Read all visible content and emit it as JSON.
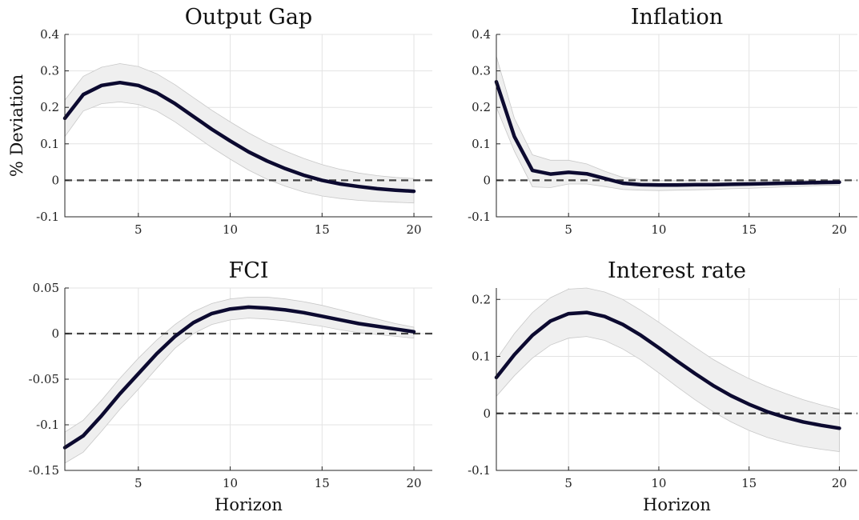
{
  "chart_data": [
    {
      "type": "line",
      "title": "Output Gap",
      "xlabel": "",
      "ylabel": "% Deviation",
      "xlim": [
        1,
        21
      ],
      "ylim": [
        -0.1,
        0.4
      ],
      "xticks": [
        5,
        10,
        15,
        20
      ],
      "yticks": [
        -0.1,
        0,
        0.1,
        0.2,
        0.3,
        0.4
      ],
      "ytick_labels": [
        "-0.1",
        "0",
        "0.1",
        "0.2",
        "0.3",
        "0.4"
      ],
      "grid": true,
      "zero_line": true,
      "x": [
        1,
        2,
        3,
        4,
        5,
        6,
        7,
        8,
        9,
        10,
        11,
        12,
        13,
        14,
        15,
        16,
        17,
        18,
        19,
        20
      ],
      "series": [
        {
          "values": [
            0.17,
            0.235,
            0.26,
            0.268,
            0.26,
            0.24,
            0.21,
            0.175,
            0.14,
            0.108,
            0.078,
            0.053,
            0.032,
            0.014,
            0.0,
            -0.01,
            -0.017,
            -0.023,
            -0.027,
            -0.03
          ]
        }
      ],
      "band_upper": [
        0.22,
        0.285,
        0.31,
        0.32,
        0.312,
        0.292,
        0.262,
        0.227,
        0.192,
        0.16,
        0.13,
        0.103,
        0.08,
        0.06,
        0.043,
        0.03,
        0.02,
        0.013,
        0.008,
        0.005
      ],
      "band_lower": [
        0.12,
        0.19,
        0.21,
        0.215,
        0.208,
        0.19,
        0.16,
        0.125,
        0.09,
        0.058,
        0.028,
        0.003,
        -0.016,
        -0.032,
        -0.043,
        -0.05,
        -0.055,
        -0.058,
        -0.06,
        -0.062
      ]
    },
    {
      "type": "line",
      "title": "Inflation",
      "xlabel": "",
      "ylabel": "",
      "xlim": [
        1,
        21
      ],
      "ylim": [
        -0.1,
        0.4
      ],
      "xticks": [
        5,
        10,
        15,
        20
      ],
      "yticks": [
        -0.1,
        0,
        0.1,
        0.2,
        0.3,
        0.4
      ],
      "ytick_labels": [
        "-0.1",
        "0",
        "0.1",
        "0.2",
        "0.3",
        "0.4"
      ],
      "grid": true,
      "zero_line": true,
      "x": [
        1,
        2,
        3,
        4,
        5,
        6,
        7,
        8,
        9,
        10,
        11,
        12,
        13,
        14,
        15,
        16,
        17,
        18,
        19,
        20
      ],
      "series": [
        {
          "values": [
            0.27,
            0.12,
            0.027,
            0.017,
            0.022,
            0.018,
            0.005,
            -0.008,
            -0.012,
            -0.013,
            -0.013,
            -0.012,
            -0.012,
            -0.011,
            -0.01,
            -0.009,
            -0.008,
            -0.007,
            -0.006,
            -0.005
          ]
        }
      ],
      "band_upper": [
        0.34,
        0.17,
        0.07,
        0.055,
        0.055,
        0.045,
        0.025,
        0.008,
        0.002,
        0.0,
        0.0,
        0.0,
        0.0,
        0.0,
        0.0,
        0.0,
        0.0,
        0.0,
        0.0,
        0.0
      ],
      "band_lower": [
        0.2,
        0.08,
        -0.018,
        -0.02,
        -0.01,
        -0.01,
        -0.017,
        -0.025,
        -0.027,
        -0.028,
        -0.027,
        -0.026,
        -0.025,
        -0.023,
        -0.022,
        -0.02,
        -0.018,
        -0.016,
        -0.014,
        -0.013
      ]
    },
    {
      "type": "line",
      "title": "FCI",
      "xlabel": "Horizon",
      "ylabel": "",
      "xlim": [
        1,
        21
      ],
      "ylim": [
        -0.15,
        0.05
      ],
      "xticks": [
        5,
        10,
        15,
        20
      ],
      "yticks": [
        -0.15,
        -0.1,
        -0.05,
        0,
        0.05
      ],
      "ytick_labels": [
        "-0.15",
        "-0.1",
        "-0.05",
        "0",
        "0.05"
      ],
      "grid": true,
      "zero_line": true,
      "x": [
        1,
        2,
        3,
        4,
        5,
        6,
        7,
        8,
        9,
        10,
        11,
        12,
        13,
        14,
        15,
        16,
        17,
        18,
        19,
        20
      ],
      "series": [
        {
          "values": [
            -0.125,
            -0.112,
            -0.09,
            -0.066,
            -0.044,
            -0.022,
            -0.003,
            0.012,
            0.022,
            0.027,
            0.029,
            0.028,
            0.026,
            0.023,
            0.019,
            0.015,
            0.011,
            0.008,
            0.005,
            0.002
          ]
        }
      ],
      "band_upper": [
        -0.108,
        -0.095,
        -0.073,
        -0.049,
        -0.027,
        -0.007,
        0.01,
        0.024,
        0.033,
        0.038,
        0.04,
        0.04,
        0.038,
        0.035,
        0.031,
        0.026,
        0.021,
        0.016,
        0.011,
        0.007
      ],
      "band_lower": [
        -0.142,
        -0.13,
        -0.107,
        -0.083,
        -0.061,
        -0.038,
        -0.016,
        0.0,
        0.01,
        0.015,
        0.017,
        0.016,
        0.014,
        0.011,
        0.008,
        0.004,
        0.001,
        -0.001,
        -0.003,
        -0.005
      ]
    },
    {
      "type": "line",
      "title": "Interest rate",
      "xlabel": "Horizon",
      "ylabel": "",
      "xlim": [
        1,
        21
      ],
      "ylim": [
        -0.1,
        0.22
      ],
      "xticks": [
        5,
        10,
        15,
        20
      ],
      "yticks": [
        -0.1,
        0,
        0.1,
        0.2
      ],
      "ytick_labels": [
        "-0.1",
        "0",
        "0.1",
        "0.2"
      ],
      "grid": true,
      "zero_line": true,
      "x": [
        1,
        2,
        3,
        4,
        5,
        6,
        7,
        8,
        9,
        10,
        11,
        12,
        13,
        14,
        15,
        16,
        17,
        18,
        19,
        20
      ],
      "series": [
        {
          "values": [
            0.063,
            0.103,
            0.137,
            0.162,
            0.175,
            0.177,
            0.17,
            0.156,
            0.137,
            0.115,
            0.092,
            0.07,
            0.049,
            0.031,
            0.016,
            0.003,
            -0.007,
            -0.015,
            -0.021,
            -0.026
          ]
        }
      ],
      "band_upper": [
        0.095,
        0.14,
        0.177,
        0.203,
        0.218,
        0.22,
        0.213,
        0.2,
        0.181,
        0.16,
        0.138,
        0.116,
        0.095,
        0.077,
        0.061,
        0.047,
        0.035,
        0.024,
        0.015,
        0.007
      ],
      "band_lower": [
        0.03,
        0.066,
        0.097,
        0.12,
        0.132,
        0.135,
        0.128,
        0.113,
        0.094,
        0.071,
        0.047,
        0.024,
        0.003,
        -0.015,
        -0.03,
        -0.042,
        -0.051,
        -0.058,
        -0.063,
        -0.067
      ]
    }
  ]
}
